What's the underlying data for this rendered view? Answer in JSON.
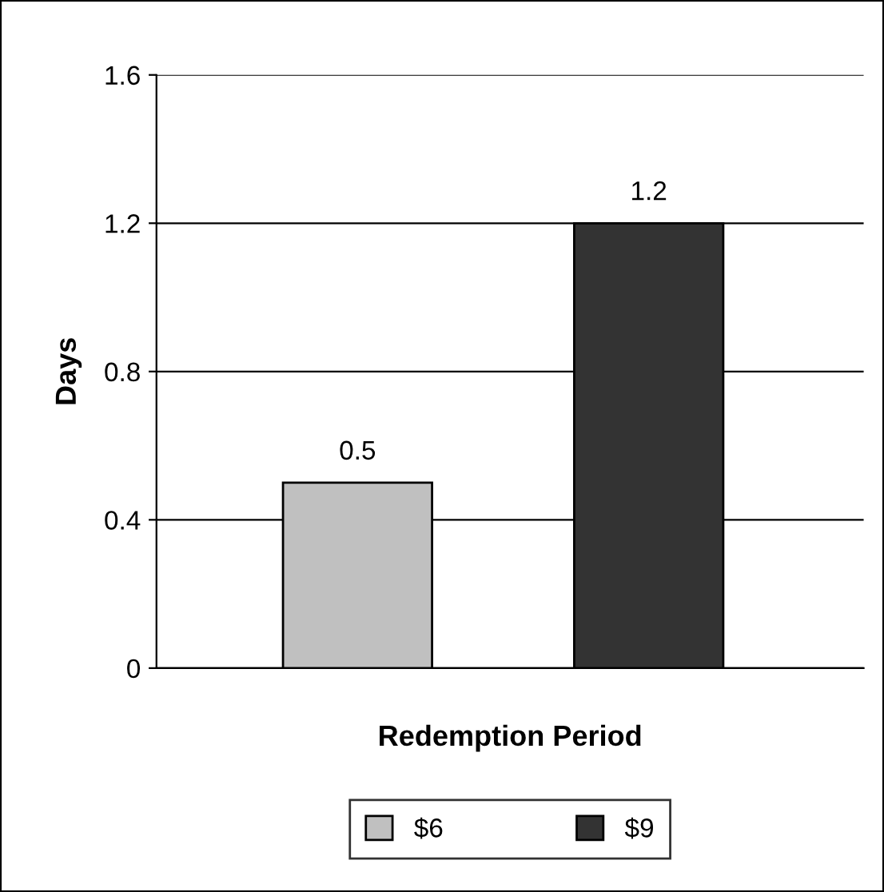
{
  "chart_data": {
    "type": "bar",
    "xlabel": "Redemption Period",
    "ylabel": "Days",
    "categories": [
      null
    ],
    "series": [
      {
        "name": "$6",
        "color": "#c0c0c0",
        "values": [
          0.5
        ]
      },
      {
        "name": "$9",
        "color": "#333333",
        "values": [
          1.2
        ]
      }
    ],
    "ylim": [
      0,
      1.6
    ],
    "yticks": [
      0,
      0.4,
      0.8,
      1.2,
      1.6
    ],
    "grid": "y",
    "legend": "bottom",
    "data_labels": true
  }
}
